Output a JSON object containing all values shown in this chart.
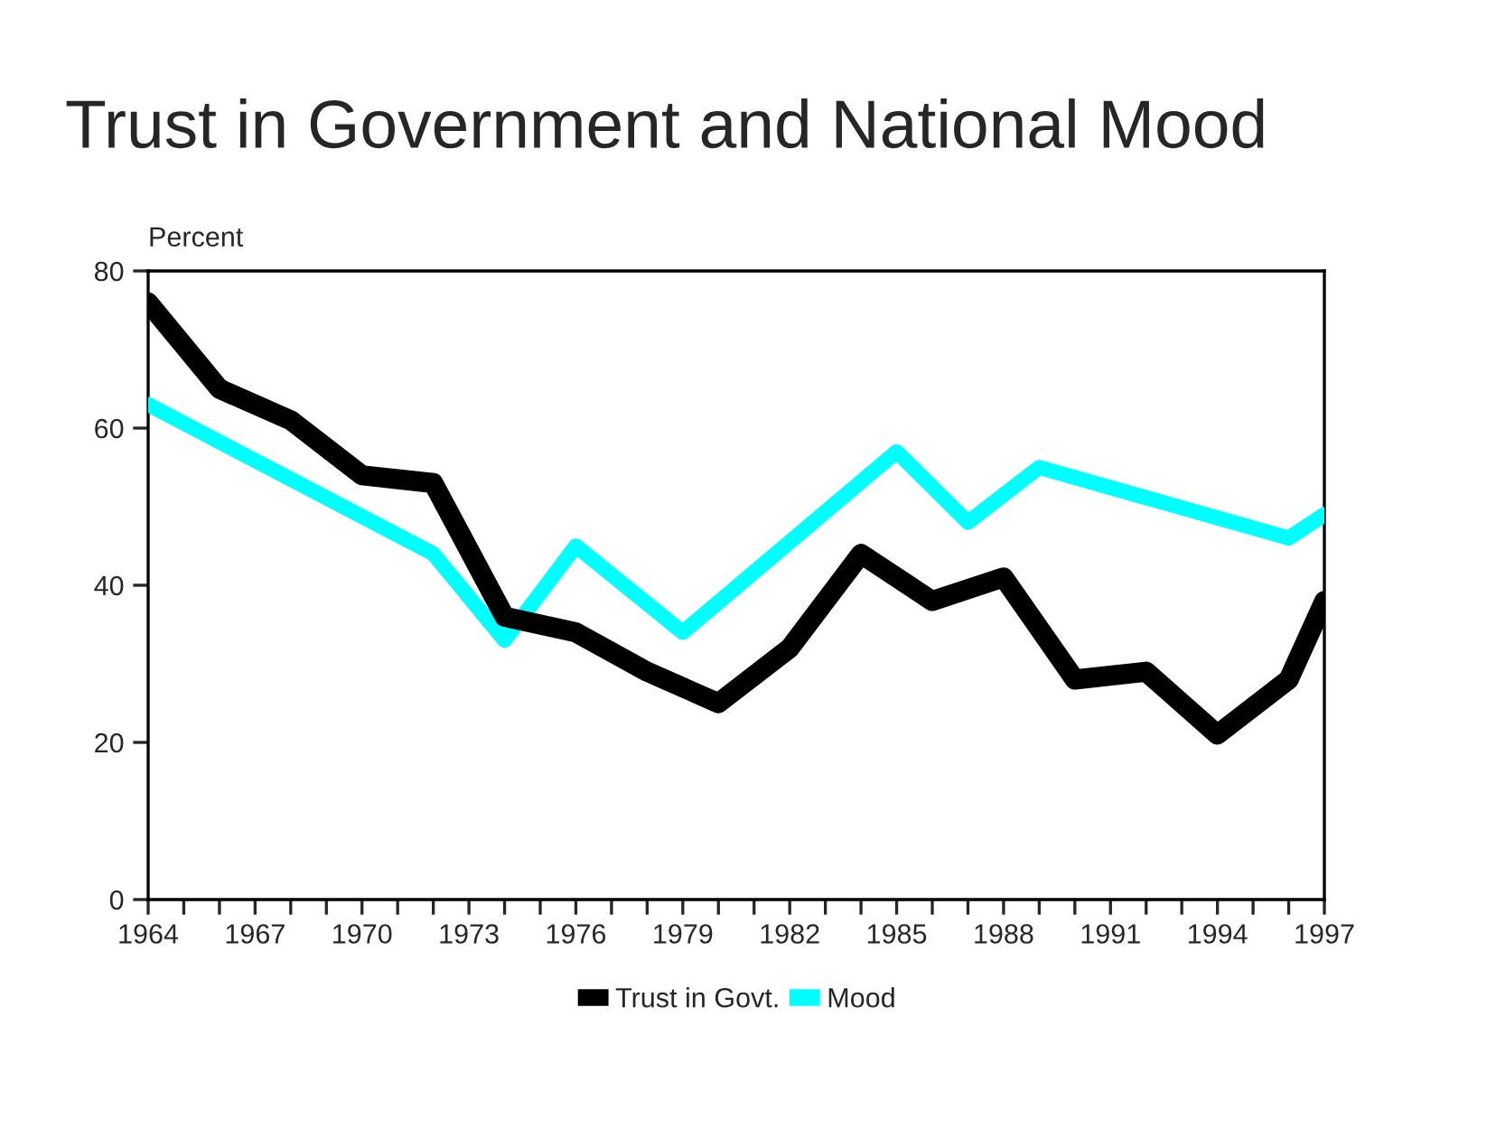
{
  "chart_data": {
    "type": "line",
    "title": "Trust in Government and National Mood",
    "ylabel": "Percent",
    "series": [
      {
        "name": "Trust in Govt.",
        "color": "#000000",
        "x": [
          1964,
          1966,
          1968,
          1970,
          1972,
          1974,
          1976,
          1978,
          1980,
          1982,
          1984,
          1986,
          1988,
          1990,
          1992,
          1994,
          1996,
          1997
        ],
        "values": [
          76,
          65,
          61,
          54,
          53,
          36,
          34,
          29,
          25,
          32,
          44,
          38,
          41,
          28,
          29,
          21,
          28,
          38
        ]
      },
      {
        "name": "Mood",
        "color": "#00ffff",
        "x": [
          1964,
          1972,
          1974,
          1976,
          1979,
          1985,
          1987,
          1989,
          1996,
          1997
        ],
        "values": [
          63,
          44,
          33,
          45,
          34,
          57,
          48,
          55,
          46,
          49
        ]
      }
    ],
    "xlim": [
      1964,
      1997
    ],
    "xticks": [
      1964,
      {
        "value": 1965,
        "label": null
      },
      {
        "value": 1966,
        "label": null
      },
      1967,
      {
        "value": 1968,
        "label": null
      },
      {
        "value": 1969,
        "label": null
      },
      1970,
      {
        "value": 1971,
        "label": null
      },
      {
        "value": 1972,
        "label": null
      },
      1973,
      {
        "value": 1974,
        "label": null
      },
      {
        "value": 1975,
        "label": null
      },
      1976,
      {
        "value": 1977,
        "label": null
      },
      {
        "value": 1978,
        "label": null
      },
      1979,
      {
        "value": 1980,
        "label": null
      },
      {
        "value": 1981,
        "label": null
      },
      1982,
      {
        "value": 1983,
        "label": null
      },
      {
        "value": 1984,
        "label": null
      },
      1985,
      {
        "value": 1986,
        "label": null
      },
      {
        "value": 1987,
        "label": null
      },
      1988,
      {
        "value": 1989,
        "label": null
      },
      {
        "value": 1990,
        "label": null
      },
      1991,
      {
        "value": 1992,
        "label": null
      },
      {
        "value": 1993,
        "label": null
      },
      1994,
      {
        "value": 1995,
        "label": null
      },
      {
        "value": 1996,
        "label": null
      },
      1997
    ],
    "ylim": [
      0,
      80
    ],
    "yticks": [
      0,
      20,
      40,
      60,
      80
    ],
    "grid": false,
    "legend": "bottom",
    "marker": "none",
    "line_style": "solid"
  }
}
